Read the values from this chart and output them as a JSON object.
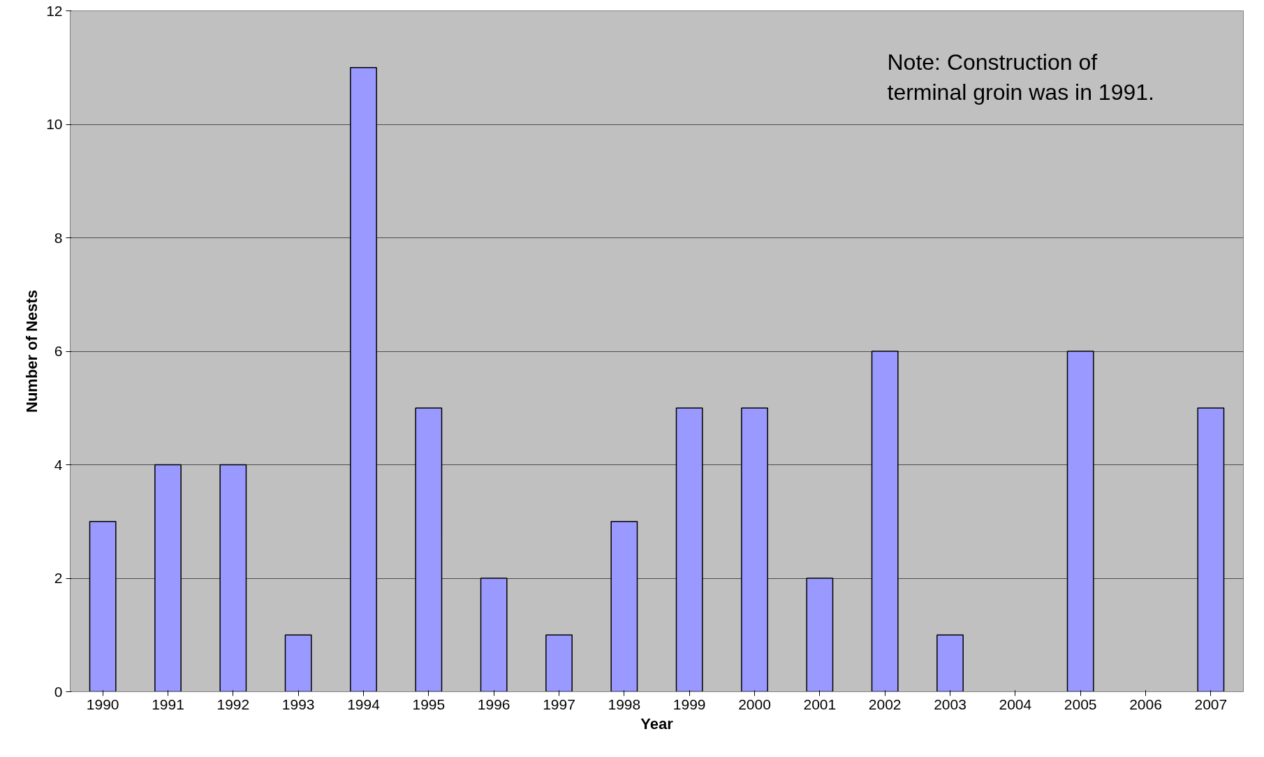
{
  "chart_data": {
    "type": "bar",
    "xlabel": "Year",
    "ylabel": "Number of Nests",
    "categories": [
      "1990",
      "1991",
      "1992",
      "1993",
      "1994",
      "1995",
      "1996",
      "1997",
      "1998",
      "1999",
      "2000",
      "2001",
      "2002",
      "2003",
      "2004",
      "2005",
      "2006",
      "2007"
    ],
    "values": [
      3,
      4,
      4,
      1,
      11,
      5,
      2,
      1,
      3,
      5,
      5,
      2,
      6,
      1,
      0,
      6,
      0,
      5
    ],
    "color": "#9999ff",
    "ylim": [
      0,
      12
    ],
    "yticks": [
      0,
      2,
      4,
      6,
      8,
      10,
      12
    ],
    "grid": "y",
    "annotations": [
      "Note: Construction of\nterminal groin was in 1991."
    ]
  }
}
